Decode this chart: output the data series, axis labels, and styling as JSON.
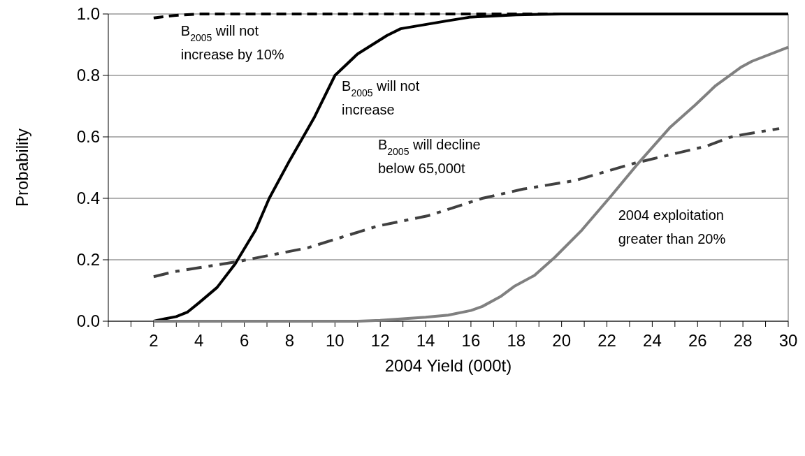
{
  "chart_data": {
    "type": "line",
    "xlabel": "2004 Yield (000t)",
    "ylabel": "Probability",
    "xlim": [
      0,
      30
    ],
    "xticks": [
      {
        "value": 0,
        "label": null
      },
      {
        "value": 1,
        "label": null
      },
      2,
      {
        "value": 3,
        "label": null
      },
      4,
      {
        "value": 5,
        "label": null
      },
      6,
      {
        "value": 7,
        "label": null
      },
      8,
      {
        "value": 9,
        "label": null
      },
      10,
      {
        "value": 11,
        "label": null
      },
      12,
      {
        "value": 13,
        "label": null
      },
      14,
      {
        "value": 15,
        "label": null
      },
      16,
      {
        "value": 17,
        "label": null
      },
      18,
      {
        "value": 19,
        "label": null
      },
      20,
      {
        "value": 21,
        "label": null
      },
      22,
      {
        "value": 23,
        "label": null
      },
      24,
      {
        "value": 25,
        "label": null
      },
      26,
      {
        "value": 27,
        "label": null
      },
      28,
      {
        "value": 29,
        "label": null
      },
      30
    ],
    "ylim": [
      0,
      1
    ],
    "yticks": [
      {
        "value": 0,
        "label": "0.0"
      },
      {
        "value": 0.2,
        "label": "0.2"
      },
      {
        "value": 0.4,
        "label": "0.4"
      },
      {
        "value": 0.6,
        "label": "0.6"
      },
      {
        "value": 0.8,
        "label": "0.8"
      },
      {
        "value": 1,
        "label": "1.0"
      }
    ],
    "grid": "y",
    "marker": "none",
    "series": [
      {
        "name": "B$_{2005}$ will not\nincrease by 10%",
        "color": "#000000",
        "line_style": "dashed",
        "x": [
          2,
          2.9,
          4,
          6,
          8,
          10,
          15,
          20,
          25,
          30
        ],
        "values": [
          0.987,
          0.995,
          1,
          1,
          1,
          1,
          1,
          1,
          1,
          1
        ]
      },
      {
        "name": "B$_{2005}$ will not\nincrease",
        "color": "#000000",
        "line_style": "solid",
        "x": [
          2,
          2.5,
          3,
          3.5,
          4,
          4.8,
          5.6,
          6.5,
          7.1,
          8,
          8.6,
          9.1,
          10,
          11,
          12.3,
          12.9,
          14.9,
          16,
          18,
          20,
          25,
          30
        ],
        "values": [
          0,
          0.008,
          0.015,
          0.03,
          0.06,
          0.11,
          0.187,
          0.297,
          0.4,
          0.523,
          0.6,
          0.665,
          0.8,
          0.87,
          0.93,
          0.952,
          0.977,
          0.99,
          0.997,
          1,
          1,
          1
        ]
      },
      {
        "name": "B$_{2005}$ will decline\nbelow 65,000t",
        "color": "#404040",
        "line_style": "dashdot",
        "x": [
          2,
          2.9,
          5.7,
          8.8,
          11.9,
          14.1,
          16.5,
          18.3,
          20.6,
          23.2,
          26.4,
          27.4,
          27.9,
          29.6
        ],
        "values": [
          0.145,
          0.161,
          0.194,
          0.239,
          0.31,
          0.343,
          0.4,
          0.43,
          0.458,
          0.514,
          0.57,
          0.598,
          0.606,
          0.627
        ]
      },
      {
        "name": "2004 exploitation\ngreater than 20%",
        "color": "#808080",
        "line_style": "solid",
        "x": [
          2,
          6,
          10,
          11,
          12,
          13,
          14,
          15,
          16,
          16.5,
          17.3,
          17.9,
          18.8,
          19.7,
          20.9,
          22.2,
          23.3,
          24.8,
          25.9,
          26.8,
          27.9,
          28.4,
          30
        ],
        "values": [
          0,
          0,
          0,
          0,
          0.003,
          0.008,
          0.013,
          0.02,
          0.035,
          0.048,
          0.08,
          0.113,
          0.149,
          0.208,
          0.297,
          0.409,
          0.507,
          0.632,
          0.704,
          0.767,
          0.826,
          0.846,
          0.892
        ]
      }
    ]
  }
}
